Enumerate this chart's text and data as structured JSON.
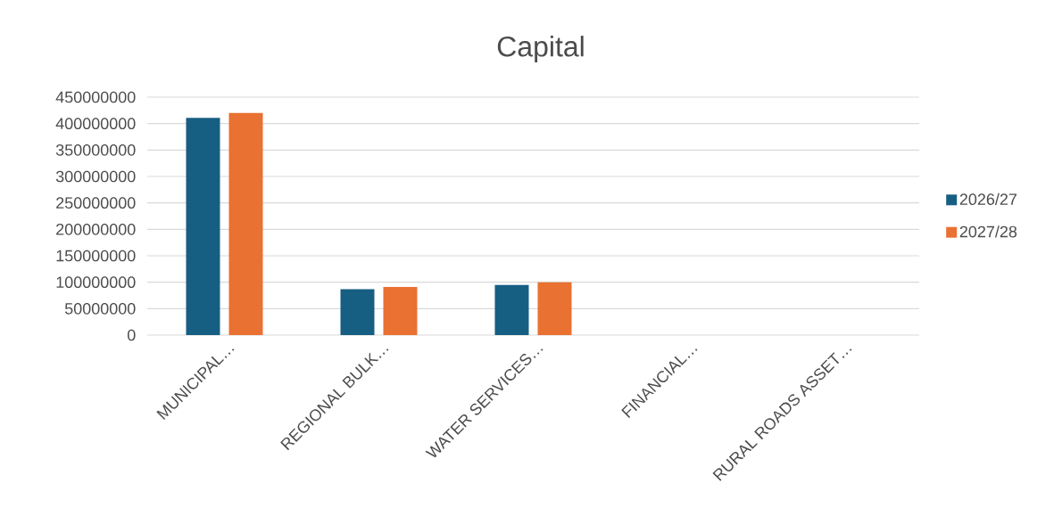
{
  "chart_data": {
    "type": "bar",
    "title": "Capital",
    "categories": [
      "MUNICIPAL…",
      "REGIONAL BULK…",
      "WATER SERVICES…",
      "FINANCIAL…",
      "RURAL ROADS ASSET…"
    ],
    "series": [
      {
        "name": "2026/27",
        "color": "#175e83",
        "values": [
          411000000,
          87000000,
          95000000,
          0,
          0
        ]
      },
      {
        "name": "2027/28",
        "color": "#e97132",
        "values": [
          420000000,
          91000000,
          100000000,
          0,
          0
        ]
      }
    ],
    "ylim": [
      0,
      450000000
    ],
    "yticks": [
      0,
      50000000,
      100000000,
      150000000,
      200000000,
      250000000,
      300000000,
      350000000,
      400000000,
      450000000
    ],
    "grid": "y",
    "legend": "right"
  }
}
